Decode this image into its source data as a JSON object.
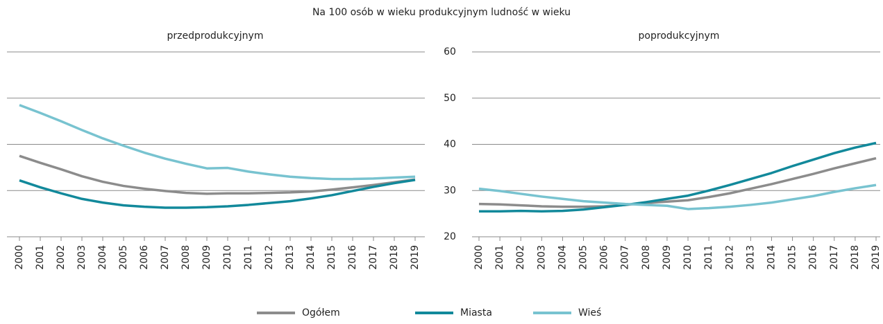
{
  "title": "Na 100 osób w wieku produkcyjnym ludność w wieku",
  "chart_data": [
    {
      "type": "line",
      "subtitle": "przedprodukcyjnym",
      "categories": [
        "2000",
        "2001",
        "2002",
        "2003",
        "2004",
        "2005",
        "2006",
        "2007",
        "2008",
        "2009",
        "2010",
        "2011",
        "2012",
        "2013",
        "2014",
        "2015",
        "2016",
        "2017",
        "2018",
        "2019"
      ],
      "series": [
        {
          "name": "Ogółem",
          "color": "#8c8c8c",
          "values": [
            37.5,
            36,
            34.6,
            33.1,
            31.9,
            31.0,
            30.4,
            29.9,
            29.5,
            29.3,
            29.4,
            29.4,
            29.5,
            29.6,
            29.8,
            30.2,
            30.7,
            31.2,
            31.8,
            32.4
          ]
        },
        {
          "name": "Miasta",
          "color": "#12899b",
          "values": [
            32.2,
            30.7,
            29.4,
            28.2,
            27.4,
            26.8,
            26.5,
            26.3,
            26.3,
            26.4,
            26.6,
            26.9,
            27.3,
            27.7,
            28.3,
            29.0,
            29.9,
            30.8,
            31.6,
            32.3
          ]
        },
        {
          "name": "Wieś",
          "color": "#78c3d0",
          "values": [
            48.5,
            46.8,
            45.0,
            43.1,
            41.3,
            39.7,
            38.2,
            36.9,
            35.8,
            34.8,
            34.9,
            34.1,
            33.5,
            33.0,
            32.7,
            32.5,
            32.5,
            32.6,
            32.8,
            33.0
          ]
        }
      ],
      "ylim": [
        20,
        60
      ],
      "yticks": [
        20,
        30,
        40,
        50,
        60
      ],
      "grid": true
    },
    {
      "type": "line",
      "subtitle": "poprodukcyjnym",
      "categories": [
        "2000",
        "2001",
        "2002",
        "2003",
        "2004",
        "2005",
        "2006",
        "2007",
        "2008",
        "2009",
        "2010",
        "2011",
        "2012",
        "2013",
        "2014",
        "2015",
        "2016",
        "2017",
        "2018",
        "2019"
      ],
      "series": [
        {
          "name": "Ogółem",
          "color": "#8c8c8c",
          "values": [
            27.1,
            27.0,
            26.8,
            26.6,
            26.5,
            26.5,
            26.6,
            26.9,
            27.3,
            27.6,
            27.9,
            28.6,
            29.4,
            30.4,
            31.4,
            32.5,
            33.6,
            34.8,
            35.9,
            37.0
          ]
        },
        {
          "name": "Miasta",
          "color": "#12899b",
          "values": [
            25.5,
            25.5,
            25.6,
            25.5,
            25.6,
            25.9,
            26.4,
            26.9,
            27.5,
            28.2,
            28.9,
            30.0,
            31.2,
            32.5,
            33.8,
            35.3,
            36.7,
            38.1,
            39.3,
            40.3
          ]
        },
        {
          "name": "Wieś",
          "color": "#78c3d0",
          "values": [
            30.4,
            29.9,
            29.3,
            28.7,
            28.2,
            27.7,
            27.4,
            27.1,
            26.9,
            26.7,
            26.0,
            26.2,
            26.5,
            26.9,
            27.4,
            28.1,
            28.8,
            29.7,
            30.5,
            31.2
          ]
        }
      ],
      "ylim": [
        20,
        60
      ],
      "yticks": [
        20,
        30,
        40,
        50,
        60
      ],
      "grid": true
    }
  ]
}
